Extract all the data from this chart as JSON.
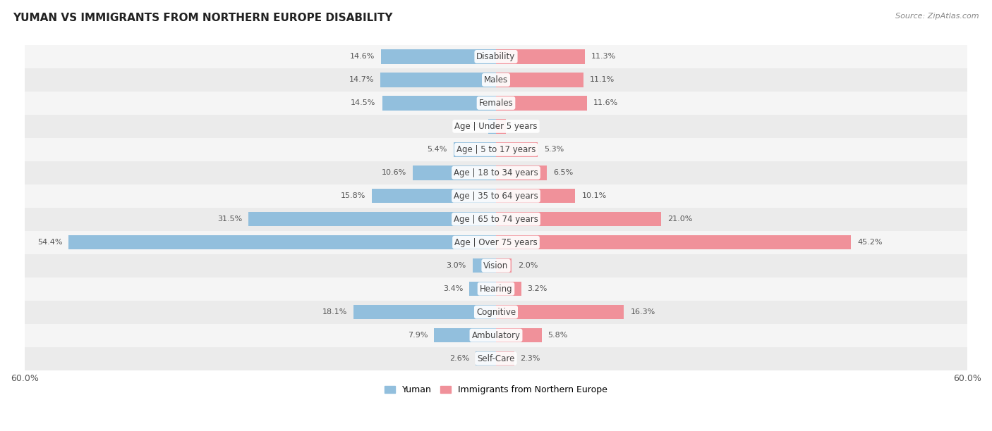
{
  "title": "YUMAN VS IMMIGRANTS FROM NORTHERN EUROPE DISABILITY",
  "source": "Source: ZipAtlas.com",
  "categories": [
    "Disability",
    "Males",
    "Females",
    "Age | Under 5 years",
    "Age | 5 to 17 years",
    "Age | 18 to 34 years",
    "Age | 35 to 64 years",
    "Age | 65 to 74 years",
    "Age | Over 75 years",
    "Vision",
    "Hearing",
    "Cognitive",
    "Ambulatory",
    "Self-Care"
  ],
  "yuman_values": [
    14.6,
    14.7,
    14.5,
    0.95,
    5.4,
    10.6,
    15.8,
    31.5,
    54.4,
    3.0,
    3.4,
    18.1,
    7.9,
    2.6
  ],
  "immigrant_values": [
    11.3,
    11.1,
    11.6,
    1.3,
    5.3,
    6.5,
    10.1,
    21.0,
    45.2,
    2.0,
    3.2,
    16.3,
    5.8,
    2.3
  ],
  "yuman_color": "#92bfdd",
  "immigrant_color": "#f0919a",
  "bar_height": 0.62,
  "xlim": 60.0,
  "row_bg_colors": [
    "#f5f5f5",
    "#ebebeb"
  ],
  "legend_yuman": "Yuman",
  "legend_immigrant": "Immigrants from Northern Europe",
  "label_fontsize": 8.5,
  "value_fontsize": 8.0,
  "title_fontsize": 11
}
